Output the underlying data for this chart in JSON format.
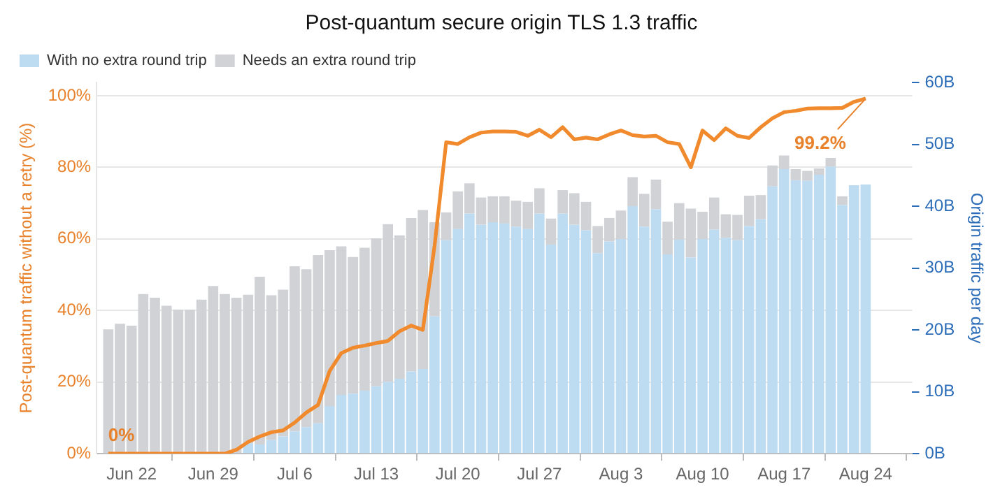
{
  "chart_data": {
    "type": "bar",
    "title": "Post-quantum secure origin TLS 1.3 traffic",
    "ylabel": "Post-quantum traffic without a retry (%)",
    "y2label": "Origin traffic per day",
    "x": [
      "--06-20",
      "--06-21",
      "--06-22",
      "--06-23",
      "--06-24",
      "--06-25",
      "--06-26",
      "--06-27",
      "--06-28",
      "--06-29",
      "--06-30",
      "--07-01",
      "--07-02",
      "--07-03",
      "--07-04",
      "--07-05",
      "--07-06",
      "--07-07",
      "--07-08",
      "--07-09",
      "--07-10",
      "--07-11",
      "--07-12",
      "--07-13",
      "--07-14",
      "--07-15",
      "--07-16",
      "--07-17",
      "--07-18",
      "--07-19",
      "--07-20",
      "--07-21",
      "--07-22",
      "--07-23",
      "--07-24",
      "--07-25",
      "--07-26",
      "--07-27",
      "--07-28",
      "--07-29",
      "--07-30",
      "--07-31",
      "--08-01",
      "--08-02",
      "--08-03",
      "--08-04",
      "--08-05",
      "--08-06",
      "--08-07",
      "--08-08",
      "--08-09",
      "--08-10",
      "--08-11",
      "--08-12",
      "--08-13",
      "--08-14",
      "--08-15",
      "--08-16",
      "--08-17",
      "--08-18",
      "--08-19",
      "--08-20",
      "--08-21",
      "--08-22",
      "--08-23",
      "--08-24"
    ],
    "stacked": true,
    "series": [
      {
        "name": "With no extra round trip",
        "axis": "y2",
        "color": "#bddcf2",
        "values": [
          0,
          0,
          0,
          0,
          0,
          0,
          0,
          0,
          0,
          0,
          0,
          null,
          1.7,
          1.5,
          2.2,
          2.8,
          3.6,
          4.3,
          4.9,
          7.7,
          9.5,
          9.7,
          10.2,
          10.9,
          11.6,
          12.1,
          13.3,
          13.7,
          22.2,
          34.5,
          36.3,
          38.8,
          37.0,
          37.4,
          37.2,
          36.7,
          36.3,
          38.8,
          33.8,
          38.8,
          37.0,
          36.1,
          32.4,
          34.3,
          34.7,
          40.0,
          36.7,
          39.5,
          32.2,
          34.6,
          31.7,
          34.7,
          36.2,
          34.9,
          34.5,
          36.8,
          37.9,
          43.2,
          46.0,
          44.2,
          44.1,
          45.1,
          46.4,
          40.2,
          43.4,
          43.5
        ]
      },
      {
        "name": "Needs an extra round trip",
        "axis": "y2",
        "color": "#d0d2d6",
        "values": [
          20.1,
          21.0,
          20.7,
          25.8,
          25.2,
          23.9,
          23.3,
          23.3,
          24.9,
          27.1,
          25.8,
          25.2,
          24.0,
          27.1,
          23.4,
          23.7,
          26.7,
          25.5,
          27.2,
          25.2,
          24.0,
          22.1,
          23.1,
          23.9,
          25.5,
          23.2,
          24.8,
          25.7,
          15.2,
          4.5,
          6.1,
          4.9,
          4.4,
          4.2,
          4.4,
          4.2,
          4.4,
          4.1,
          4.2,
          3.8,
          5.1,
          4.6,
          4.4,
          3.8,
          4.6,
          4.7,
          5.3,
          4.8,
          5.3,
          5.9,
          7.9,
          4.4,
          5.2,
          3.8,
          4.1,
          4.9,
          3.9,
          3.4,
          2.2,
          1.8,
          1.6,
          1.0,
          1.4,
          1.4,
          0,
          0
        ]
      },
      {
        "type": "line",
        "axis": "y",
        "color": "#f08a2c",
        "values": [
          0,
          0,
          0,
          0,
          0,
          0,
          0,
          0,
          0,
          0,
          0,
          1.1,
          3.3,
          4.8,
          6.0,
          6.5,
          8.7,
          11.5,
          13.6,
          23.1,
          28.1,
          29.6,
          30.2,
          30.9,
          31.5,
          34.2,
          35.8,
          34.6,
          58,
          87.0,
          86.5,
          88.4,
          89.7,
          90.0,
          90.0,
          89.9,
          88.8,
          90.5,
          88.4,
          91.2,
          87.8,
          88.3,
          87.8,
          89.2,
          90.3,
          89.0,
          88.6,
          88.8,
          87.0,
          86.5,
          80.0,
          90.3,
          87.6,
          90.9,
          88.8,
          88.2,
          91.2,
          93.7,
          95.4,
          95.8,
          96.4,
          96.5,
          96.5,
          96.6,
          98.3,
          99.2
        ]
      }
    ],
    "xlim": [
      "--06-19",
      "--08-28"
    ],
    "xticks": [
      {
        "value": "--06-22",
        "label": "Jun 22"
      },
      {
        "value": "--06-29",
        "label": "Jun 29"
      },
      {
        "value": "--07-06",
        "label": "Jul 6"
      },
      {
        "value": "--07-13",
        "label": "Jul 13"
      },
      {
        "value": "--07-20",
        "label": "Jul 20"
      },
      {
        "value": "--07-27",
        "label": "Jul 27"
      },
      {
        "value": "--08-03",
        "label": "Aug 3"
      },
      {
        "value": "--08-10",
        "label": "Aug 10"
      },
      {
        "value": "--08-17",
        "label": "Aug 17"
      },
      {
        "value": "--08-24",
        "label": "Aug 24"
      }
    ],
    "ylim": [
      0,
      103.7
    ],
    "yticks": [
      {
        "value": 0,
        "label": "0%"
      },
      {
        "value": 20,
        "label": "20%"
      },
      {
        "value": 40,
        "label": "40%"
      },
      {
        "value": 60,
        "label": "60%"
      },
      {
        "value": 80,
        "label": "80%"
      },
      {
        "value": 100,
        "label": "100%"
      }
    ],
    "y2lim": [
      0,
      60
    ],
    "y2ticks": [
      {
        "value": 0,
        "label": "0B"
      },
      {
        "value": 10,
        "label": "10B"
      },
      {
        "value": 20,
        "label": "20B"
      },
      {
        "value": 30,
        "label": "30B"
      },
      {
        "value": 40,
        "label": "40B"
      },
      {
        "value": 50,
        "label": "50B"
      },
      {
        "value": 60,
        "label": "60B"
      }
    ],
    "grid": "y",
    "legend": "top left",
    "marker": "none",
    "line_style": "solid",
    "annotations": [
      {
        "text": "0%",
        "x": "--06-20",
        "y": 0
      },
      {
        "text": "99.2%",
        "x": "--08-24",
        "y": 99.2
      }
    ]
  }
}
